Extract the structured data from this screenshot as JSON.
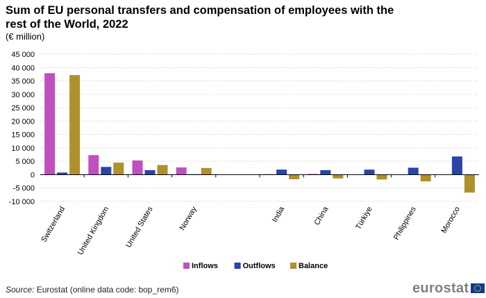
{
  "title": "Sum of EU personal transfers and compensation of employees with the rest of the World, 2022",
  "subtitle": "(€ million)",
  "source_label": "Source:",
  "source_text": " Eurostat (online data code: bop_rem6)",
  "logo_text": "eurostat",
  "chart_data": {
    "type": "bar",
    "title": "Sum of EU personal transfers and compensation of employees with the rest of the World, 2022",
    "subtitle": "(€ million)",
    "categories": [
      "Switzerland",
      "United Kingdom",
      "United States",
      "Norway",
      "",
      "India",
      "China",
      "Türkiye",
      "Philippines",
      "Morocco"
    ],
    "series": [
      {
        "name": "Inflows",
        "color": "#c04fc0",
        "values": [
          37900,
          7300,
          5300,
          2700,
          null,
          200,
          300,
          100,
          100,
          100
        ]
      },
      {
        "name": "Outflows",
        "color": "#2945a8",
        "values": [
          800,
          2900,
          1700,
          200,
          null,
          1900,
          1700,
          1900,
          2600,
          6800
        ]
      },
      {
        "name": "Balance",
        "color": "#b0902a",
        "values": [
          37200,
          4500,
          3600,
          2500,
          null,
          -1700,
          -1400,
          -1800,
          -2500,
          -6700
        ]
      }
    ],
    "yticks": [
      45000,
      40000,
      35000,
      30000,
      25000,
      20000,
      15000,
      10000,
      5000,
      0,
      -5000,
      -10000
    ],
    "ytick_labels": [
      "45 000",
      "40 000",
      "35 000",
      "30 000",
      "25 000",
      "20 000",
      "15 000",
      "10 000",
      "5 000",
      "0",
      "-5 000",
      "-10 000"
    ],
    "ylim": [
      -10000,
      45000
    ],
    "grid": true,
    "legend_position": "bottom"
  }
}
